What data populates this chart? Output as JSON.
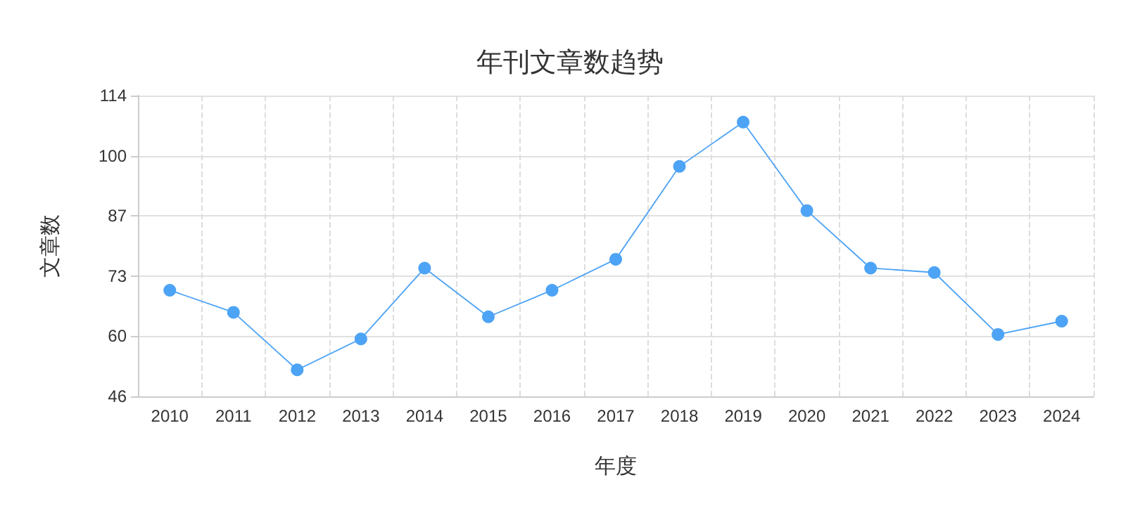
{
  "chart_data": {
    "type": "line",
    "title": "年刊文章数趋势",
    "xlabel": "年度",
    "ylabel": "文章数",
    "categories": [
      "2010",
      "2011",
      "2012",
      "2013",
      "2014",
      "2015",
      "2016",
      "2017",
      "2018",
      "2019",
      "2020",
      "2021",
      "2022",
      "2023",
      "2024"
    ],
    "series": [
      {
        "color": "#4da3f5",
        "values": [
          70,
          65,
          52,
          59,
          75,
          64,
          70,
          77,
          98,
          108,
          88,
          75,
          74,
          60,
          63
        ]
      }
    ],
    "ylim": [
      46,
      114
    ],
    "yticks": [
      46,
      {
        "value": 59.6,
        "label": "60"
      },
      {
        "value": 73.2,
        "label": "73"
      },
      {
        "value": 86.8,
        "label": "87"
      },
      {
        "value": 100.4,
        "label": "100"
      },
      114
    ],
    "grid": true,
    "marker": "circle",
    "line_style": "solid"
  }
}
